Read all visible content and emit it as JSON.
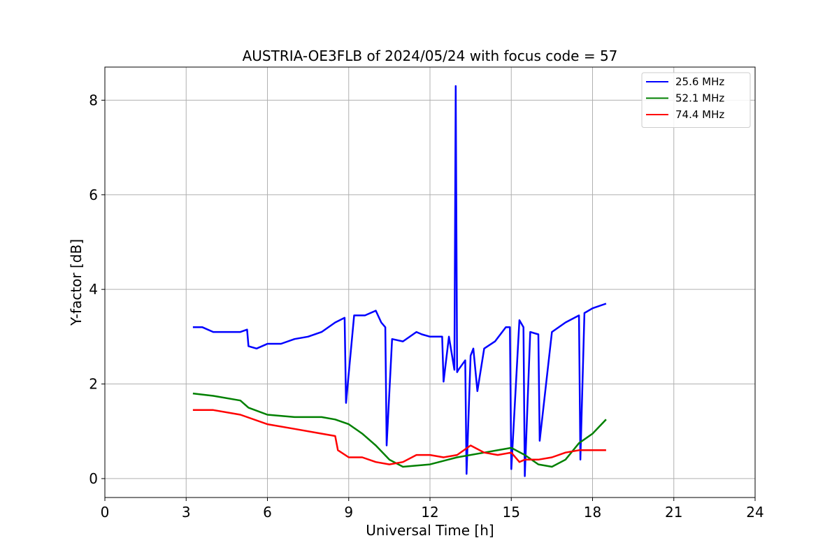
{
  "chart_data": {
    "type": "line",
    "title": "AUSTRIA-OE3FLB of 2024/05/24 with focus code = 57",
    "xlabel": "Universal Time [h]",
    "ylabel": "Y-factor [dB]",
    "xlim": [
      0,
      24
    ],
    "ylim": [
      -0.4,
      8.7
    ],
    "xticks": [
      "0",
      "3",
      "6",
      "9",
      "12",
      "15",
      "18",
      "21",
      "24"
    ],
    "yticks": [
      "0",
      "2",
      "4",
      "6",
      "8"
    ],
    "grid": true,
    "legend_position": "top-right",
    "series": [
      {
        "name": "   25.6 MHz",
        "color": "#0000ff",
        "x": [
          3.25,
          3.6,
          4.0,
          4.5,
          5.0,
          5.25,
          5.3,
          5.6,
          6.0,
          6.5,
          7.0,
          7.5,
          8.0,
          8.5,
          8.85,
          8.9,
          9.2,
          9.6,
          10.0,
          10.2,
          10.35,
          10.4,
          10.6,
          11.0,
          11.5,
          11.7,
          12.0,
          12.45,
          12.5,
          12.7,
          12.9,
          12.95,
          13.0,
          13.05,
          13.3,
          13.35,
          13.5,
          13.6,
          13.75,
          14.0,
          14.4,
          14.8,
          14.95,
          15.0,
          15.3,
          15.45,
          15.5,
          15.7,
          16.0,
          16.05,
          16.5,
          17.0,
          17.5,
          17.55,
          17.7,
          18.0,
          18.5
        ],
        "y": [
          3.2,
          3.2,
          3.1,
          3.1,
          3.1,
          3.15,
          2.8,
          2.75,
          2.85,
          2.85,
          2.95,
          3.0,
          3.1,
          3.3,
          3.4,
          1.6,
          3.45,
          3.45,
          3.55,
          3.3,
          3.2,
          0.7,
          2.95,
          2.9,
          3.1,
          3.05,
          3.0,
          3.0,
          2.05,
          3.0,
          2.3,
          8.3,
          2.25,
          2.3,
          2.5,
          0.1,
          2.6,
          2.75,
          1.85,
          2.75,
          2.9,
          3.2,
          3.2,
          0.2,
          3.35,
          3.2,
          0.05,
          3.1,
          3.05,
          0.8,
          3.1,
          3.3,
          3.45,
          0.4,
          3.5,
          3.6,
          3.7
        ]
      },
      {
        "name": "   52.1 MHz",
        "color": "#008000",
        "x": [
          3.25,
          4.0,
          5.0,
          5.3,
          6.0,
          7.0,
          8.0,
          8.5,
          9.0,
          9.5,
          10.0,
          10.5,
          11.0,
          12.0,
          13.0,
          14.0,
          15.0,
          15.5,
          16.0,
          16.5,
          17.0,
          17.5,
          18.0,
          18.5
        ],
        "y": [
          1.8,
          1.75,
          1.65,
          1.5,
          1.35,
          1.3,
          1.3,
          1.25,
          1.15,
          0.95,
          0.7,
          0.4,
          0.25,
          0.3,
          0.45,
          0.55,
          0.65,
          0.5,
          0.3,
          0.25,
          0.4,
          0.75,
          0.95,
          1.25
        ]
      },
      {
        "name": "   74.4 MHz",
        "color": "#ff0000",
        "x": [
          3.25,
          4.0,
          5.0,
          6.0,
          7.0,
          8.0,
          8.5,
          8.6,
          9.0,
          9.5,
          10.0,
          10.5,
          11.0,
          11.5,
          12.0,
          12.5,
          13.0,
          13.5,
          14.0,
          14.5,
          15.0,
          15.3,
          15.5,
          16.0,
          16.5,
          17.0,
          17.5,
          18.0,
          18.5
        ],
        "y": [
          1.45,
          1.45,
          1.35,
          1.15,
          1.05,
          0.95,
          0.9,
          0.6,
          0.45,
          0.45,
          0.35,
          0.3,
          0.35,
          0.5,
          0.5,
          0.45,
          0.5,
          0.7,
          0.55,
          0.5,
          0.55,
          0.35,
          0.4,
          0.4,
          0.45,
          0.55,
          0.6,
          0.6,
          0.6
        ]
      }
    ]
  }
}
